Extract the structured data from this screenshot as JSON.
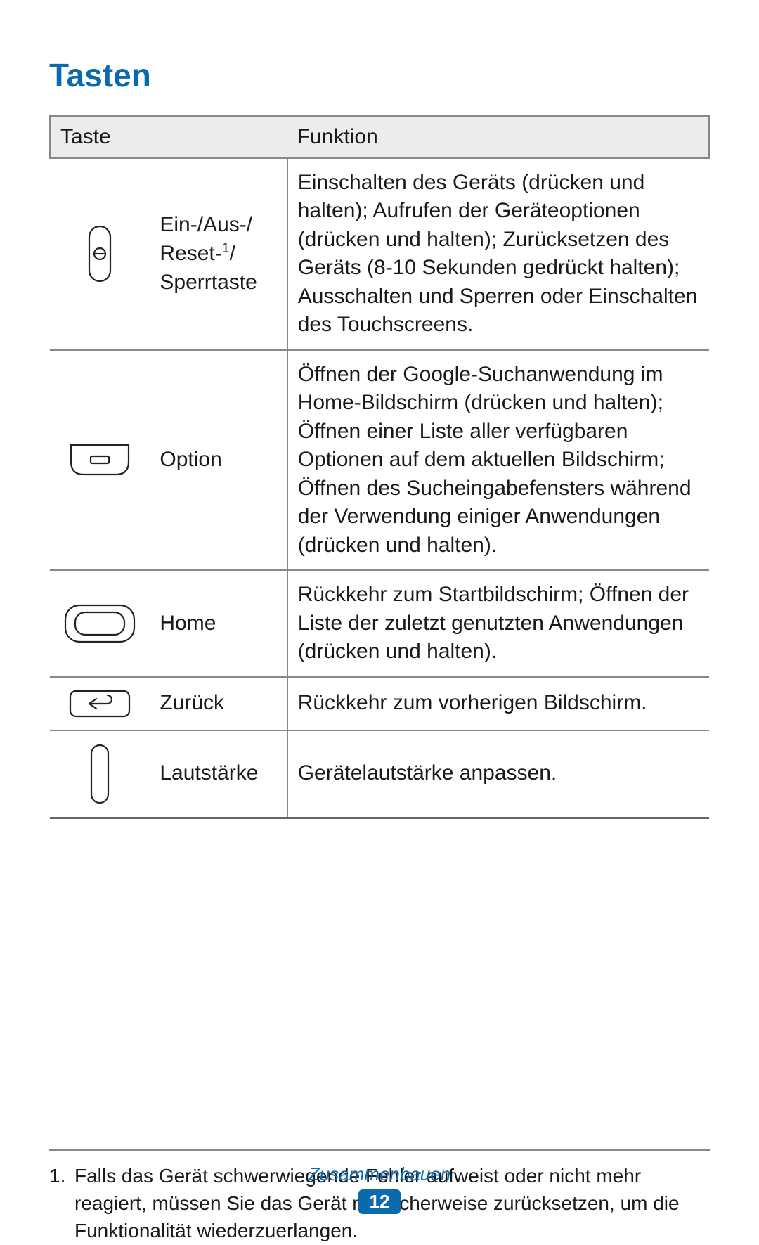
{
  "colors": {
    "title": "#0a6aad",
    "section_name": "#0a6aad",
    "page_badge_bg": "#0a6aad",
    "page_badge_fg": "#ffffff",
    "rule": "#888888",
    "header_bg": "#ececec",
    "text": "#1a1a1a"
  },
  "title": "Tasten",
  "table": {
    "headers": {
      "col1": "Taste",
      "col2": "Funktion"
    },
    "rows": [
      {
        "icon": "power",
        "label_html": "Ein-/Aus-/<br>Reset-<sup>1</sup>/<br>Sperrtaste",
        "func": "Einschalten des Geräts (drücken und halten); Aufrufen der Geräteoptionen (drücken und halten); Zurücksetzen des Geräts (8-10 Sekunden gedrückt halten); Ausschalten und Sperren oder Einschalten des Touchscreens."
      },
      {
        "icon": "option",
        "label": "Option",
        "func": "Öffnen der Google-Suchanwendung im Home-Bildschirm (drücken und halten); Öffnen einer Liste aller verfügbaren Optionen auf dem aktuellen Bildschirm; Öffnen des Sucheingabefensters während der Verwendung einiger Anwendungen (drücken und halten)."
      },
      {
        "icon": "home",
        "label": "Home",
        "func": "Rückkehr zum Startbildschirm; Öffnen der Liste der zuletzt genutzten Anwendungen (drücken und halten)."
      },
      {
        "icon": "back",
        "label": "Zurück",
        "func": "Rückkehr zum vorherigen Bildschirm."
      },
      {
        "icon": "volume",
        "label": "Lautstärke",
        "func": "Gerätelautstärke anpassen."
      }
    ]
  },
  "footnote": {
    "num": "1.",
    "text": "Falls das Gerät schwerwiegende Fehler aufweist oder nicht mehr reagiert, müssen Sie das Gerät möglicherweise zurücksetzen, um die Funktionalität wiederzuerlangen."
  },
  "footer": {
    "section": "Zusammenbauen",
    "page": "12"
  }
}
